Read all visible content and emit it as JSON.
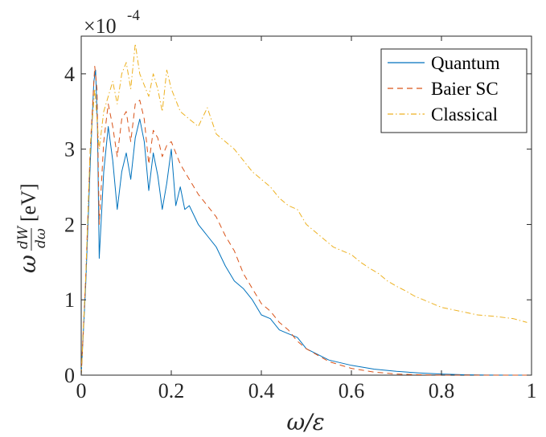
{
  "chart_data": {
    "type": "line",
    "title": "",
    "xlabel": "ω/ε",
    "ylabel_parts": {
      "prefix": "ω",
      "numerator": "dW",
      "denominator": "dω",
      "unit": "[eV]"
    },
    "y_exponent_label": {
      "base": "×10",
      "exponent": "-4"
    },
    "xlim": [
      0,
      1
    ],
    "ylim": [
      0,
      0.00045
    ],
    "grid": false,
    "legend_position": "top-right",
    "x_ticks": [
      0,
      0.2,
      0.4,
      0.6,
      0.8,
      1
    ],
    "x_tick_labels": [
      "0",
      "0.2",
      "0.4",
      "0.6",
      "0.8",
      "1"
    ],
    "y_ticks": [
      0,
      0.0001,
      0.0002,
      0.0003,
      0.0004
    ],
    "y_tick_labels": [
      "0",
      "1",
      "2",
      "3",
      "4"
    ],
    "series": [
      {
        "name": "Quantum",
        "color": "#0072BD",
        "dash": "solid",
        "points": [
          [
            0,
            0
          ],
          [
            0.01,
            0.00012
          ],
          [
            0.02,
            0.00028
          ],
          [
            0.028,
            0.00039
          ],
          [
            0.032,
            0.000405
          ],
          [
            0.036,
            0.00033
          ],
          [
            0.04,
            0.000155
          ],
          [
            0.05,
            0.00027
          ],
          [
            0.06,
            0.00033
          ],
          [
            0.07,
            0.000285
          ],
          [
            0.08,
            0.00022
          ],
          [
            0.09,
            0.00027
          ],
          [
            0.1,
            0.000295
          ],
          [
            0.11,
            0.00026
          ],
          [
            0.12,
            0.000315
          ],
          [
            0.13,
            0.00034
          ],
          [
            0.14,
            0.00031
          ],
          [
            0.15,
            0.000245
          ],
          [
            0.16,
            0.000295
          ],
          [
            0.17,
            0.000265
          ],
          [
            0.18,
            0.00022
          ],
          [
            0.19,
            0.000255
          ],
          [
            0.2,
            0.0003
          ],
          [
            0.21,
            0.000225
          ],
          [
            0.22,
            0.00025
          ],
          [
            0.23,
            0.00022
          ],
          [
            0.24,
            0.000225
          ],
          [
            0.26,
            0.0002
          ],
          [
            0.28,
            0.000185
          ],
          [
            0.3,
            0.00017
          ],
          [
            0.32,
            0.000145
          ],
          [
            0.34,
            0.000125
          ],
          [
            0.36,
            0.000115
          ],
          [
            0.38,
            0.0001
          ],
          [
            0.4,
            8e-05
          ],
          [
            0.42,
            7.5e-05
          ],
          [
            0.44,
            6e-05
          ],
          [
            0.46,
            5.5e-05
          ],
          [
            0.48,
            5e-05
          ],
          [
            0.5,
            3.5e-05
          ],
          [
            0.55,
            2e-05
          ],
          [
            0.6,
            1.3e-05
          ],
          [
            0.65,
            8e-06
          ],
          [
            0.7,
            5e-06
          ],
          [
            0.75,
            3e-06
          ],
          [
            0.8,
            1.5e-06
          ],
          [
            0.85,
            5e-07
          ],
          [
            0.9,
            1e-07
          ],
          [
            1,
            0
          ]
        ]
      },
      {
        "name": "Baier SC",
        "color": "#D95319",
        "dash": "dashed",
        "points": [
          [
            0,
            0
          ],
          [
            0.01,
            0.00013
          ],
          [
            0.02,
            0.0003
          ],
          [
            0.03,
            0.00041
          ],
          [
            0.035,
            0.00038
          ],
          [
            0.04,
            0.0002
          ],
          [
            0.05,
            0.00031
          ],
          [
            0.06,
            0.00036
          ],
          [
            0.07,
            0.00033
          ],
          [
            0.08,
            0.00029
          ],
          [
            0.09,
            0.00034
          ],
          [
            0.1,
            0.00035
          ],
          [
            0.11,
            0.00031
          ],
          [
            0.12,
            0.00036
          ],
          [
            0.13,
            0.000365
          ],
          [
            0.14,
            0.00034
          ],
          [
            0.15,
            0.00028
          ],
          [
            0.16,
            0.000325
          ],
          [
            0.17,
            0.000315
          ],
          [
            0.18,
            0.00029
          ],
          [
            0.19,
            0.000305
          ],
          [
            0.2,
            0.00031
          ],
          [
            0.22,
            0.00028
          ],
          [
            0.24,
            0.00026
          ],
          [
            0.26,
            0.00024
          ],
          [
            0.28,
            0.000225
          ],
          [
            0.3,
            0.00021
          ],
          [
            0.32,
            0.000185
          ],
          [
            0.34,
            0.000165
          ],
          [
            0.36,
            0.000135
          ],
          [
            0.38,
            0.000115
          ],
          [
            0.4,
            9.5e-05
          ],
          [
            0.42,
            8.5e-05
          ],
          [
            0.44,
            7e-05
          ],
          [
            0.46,
            6e-05
          ],
          [
            0.48,
            4.5e-05
          ],
          [
            0.5,
            3.5e-05
          ],
          [
            0.55,
            1.8e-05
          ],
          [
            0.6,
            9e-06
          ],
          [
            0.65,
            4e-06
          ],
          [
            0.7,
            1.5e-06
          ],
          [
            0.75,
            5e-07
          ],
          [
            0.8,
            1e-07
          ],
          [
            1,
            0
          ]
        ]
      },
      {
        "name": "Classical",
        "color": "#EDB120",
        "dash": "dashdot",
        "points": [
          [
            0,
            0
          ],
          [
            0.01,
            0.00013
          ],
          [
            0.02,
            0.0003
          ],
          [
            0.03,
            0.00038
          ],
          [
            0.04,
            0.0003
          ],
          [
            0.05,
            0.00035
          ],
          [
            0.06,
            0.00037
          ],
          [
            0.07,
            0.00039
          ],
          [
            0.08,
            0.00036
          ],
          [
            0.09,
            0.0004
          ],
          [
            0.1,
            0.000415
          ],
          [
            0.11,
            0.00038
          ],
          [
            0.12,
            0.00044
          ],
          [
            0.13,
            0.0004
          ],
          [
            0.14,
            0.000385
          ],
          [
            0.15,
            0.00037
          ],
          [
            0.16,
            0.0004
          ],
          [
            0.17,
            0.00038
          ],
          [
            0.18,
            0.00035
          ],
          [
            0.19,
            0.000405
          ],
          [
            0.2,
            0.00038
          ],
          [
            0.21,
            0.000365
          ],
          [
            0.22,
            0.00035
          ],
          [
            0.24,
            0.00034
          ],
          [
            0.26,
            0.00033
          ],
          [
            0.28,
            0.000355
          ],
          [
            0.3,
            0.00032
          ],
          [
            0.32,
            0.00031
          ],
          [
            0.34,
            0.0003
          ],
          [
            0.36,
            0.000285
          ],
          [
            0.38,
            0.00027
          ],
          [
            0.4,
            0.00026
          ],
          [
            0.42,
            0.00025
          ],
          [
            0.44,
            0.000235
          ],
          [
            0.46,
            0.000225
          ],
          [
            0.48,
            0.00022
          ],
          [
            0.5,
            0.0002
          ],
          [
            0.52,
            0.00019
          ],
          [
            0.54,
            0.00018
          ],
          [
            0.56,
            0.00017
          ],
          [
            0.58,
            0.000165
          ],
          [
            0.6,
            0.00016
          ],
          [
            0.62,
            0.00015
          ],
          [
            0.64,
            0.000142
          ],
          [
            0.66,
            0.000135
          ],
          [
            0.68,
            0.000125
          ],
          [
            0.7,
            0.000118
          ],
          [
            0.72,
            0.000112
          ],
          [
            0.74,
            0.000105
          ],
          [
            0.76,
            0.0001
          ],
          [
            0.78,
            9.5e-05
          ],
          [
            0.8,
            9e-05
          ],
          [
            0.84,
            8.5e-05
          ],
          [
            0.88,
            8e-05
          ],
          [
            0.92,
            7.8e-05
          ],
          [
            0.96,
            7.5e-05
          ],
          [
            0.99,
            7e-05
          ]
        ]
      }
    ]
  }
}
